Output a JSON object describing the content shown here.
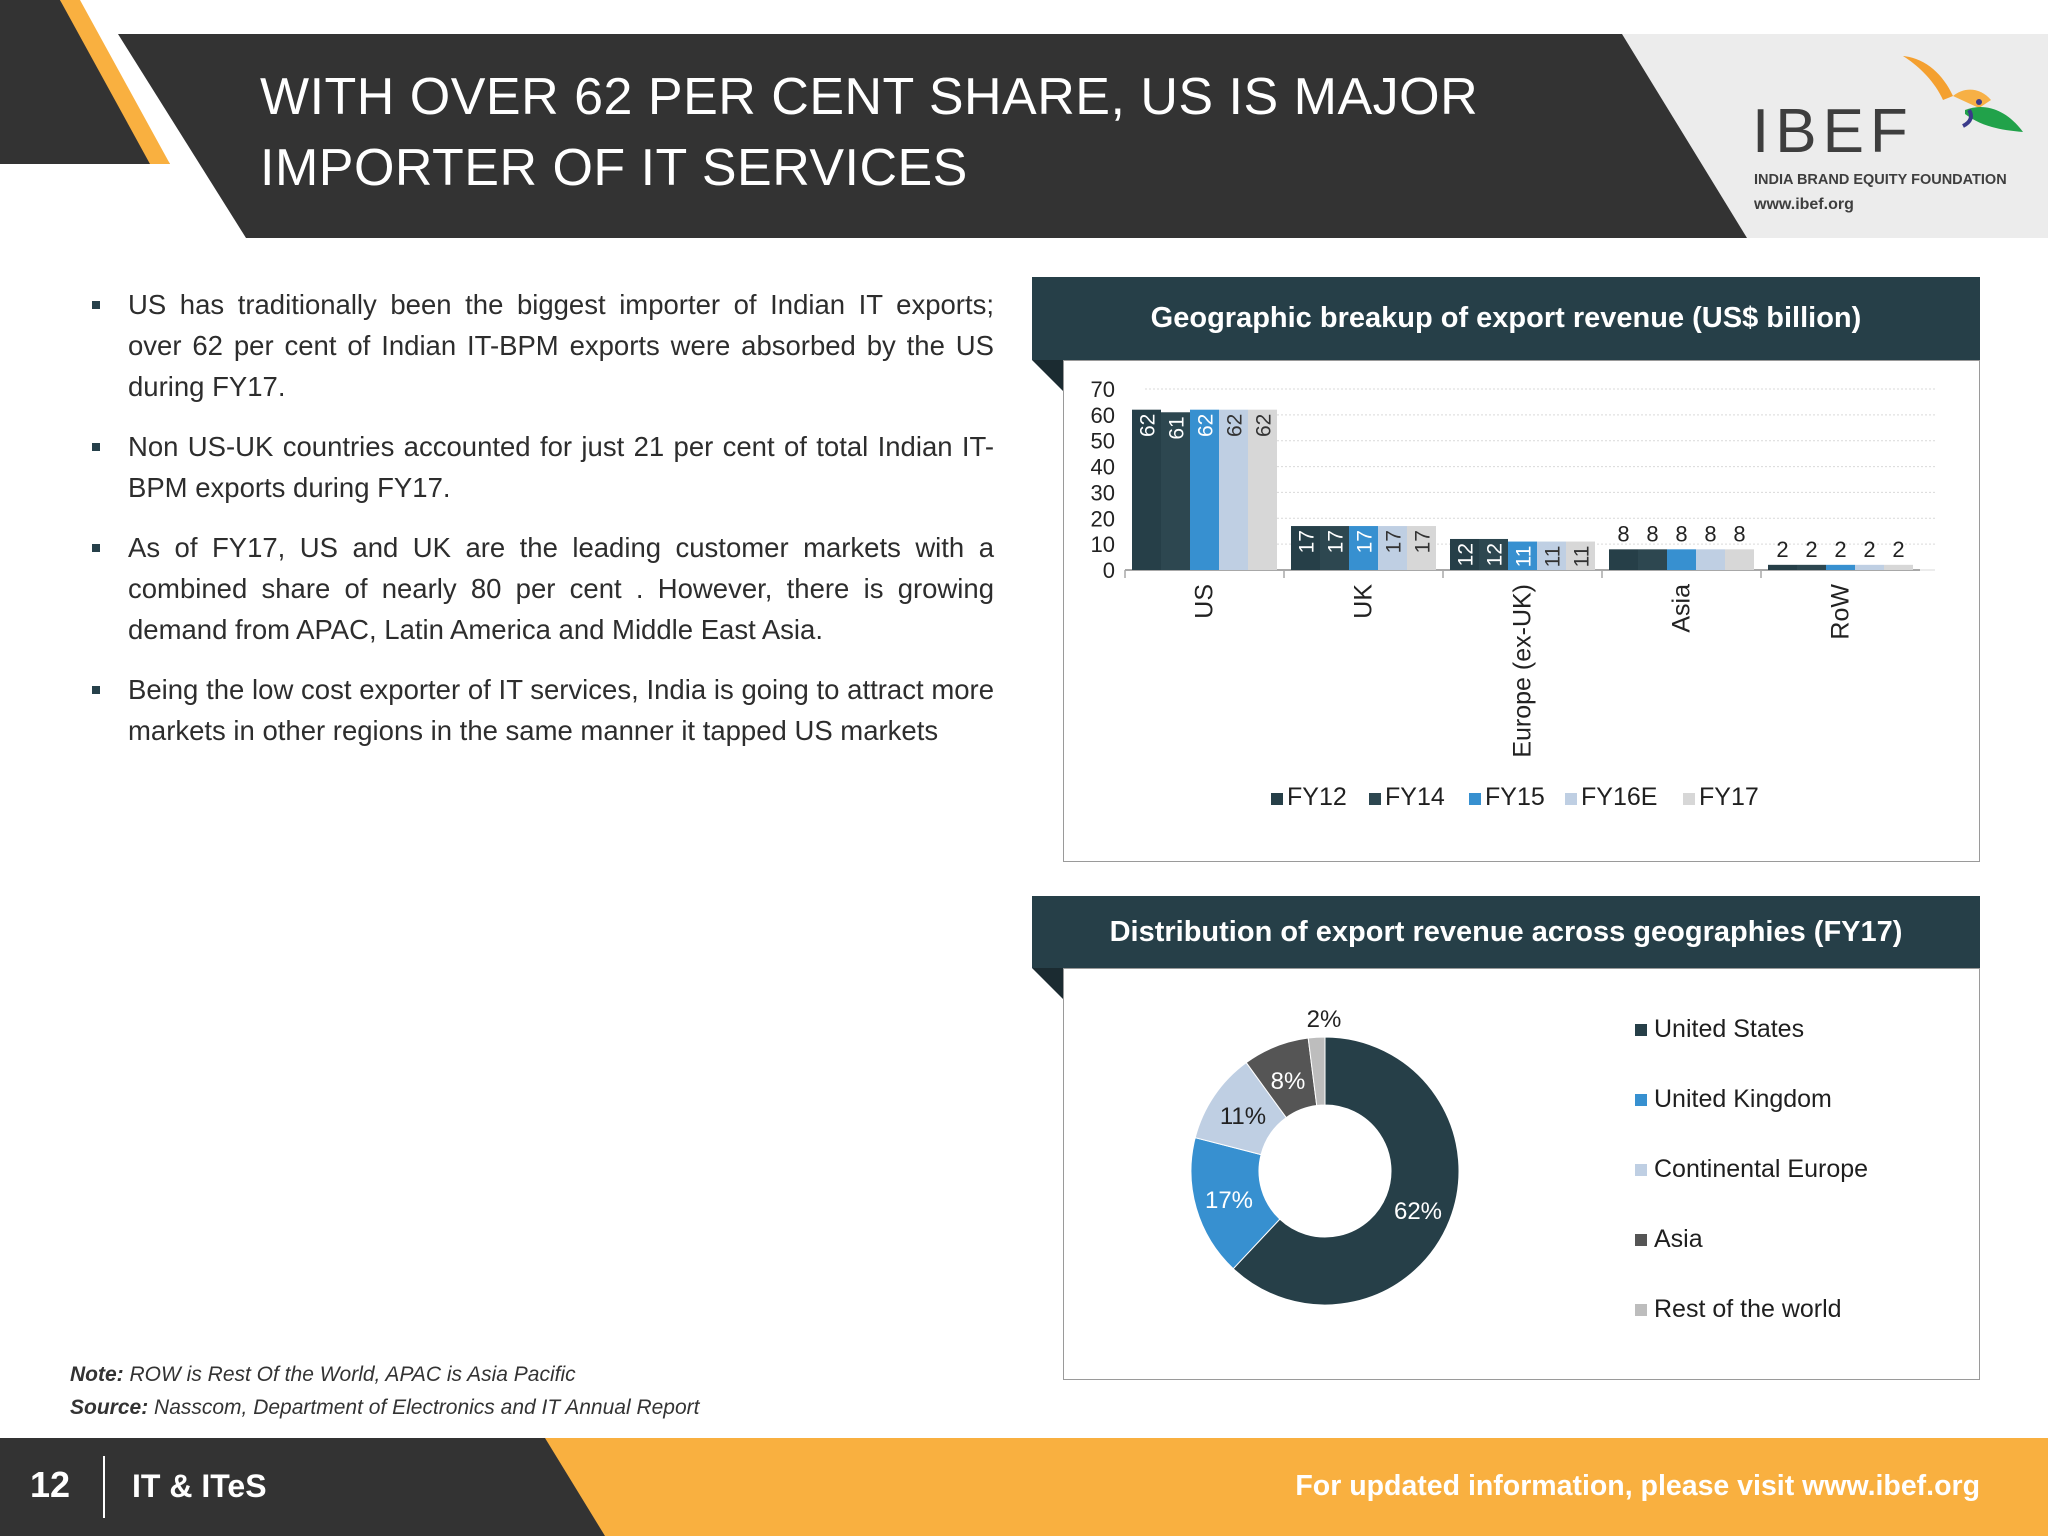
{
  "header": {
    "title_line1": "WITH OVER 62 PER CENT SHARE, US IS MAJOR",
    "title_line2": "IMPORTER OF IT SERVICES"
  },
  "logo": {
    "brand": "IBEF",
    "tagline": "INDIA BRAND EQUITY FOUNDATION",
    "url": "www.ibef.org",
    "icon": "bird-icon"
  },
  "bullets": [
    "US has traditionally been the biggest importer of Indian IT exports; over 62 per cent of Indian IT-BPM exports were absorbed by the US during FY17.",
    "Non US-UK countries accounted for just 21 per cent of total Indian IT-BPM exports during FY17.",
    "As of FY17, US and UK are the leading customer markets with a combined share of nearly 80 per cent . However, there is growing demand from APAC, Latin America and Middle East Asia.",
    "Being the low cost exporter of IT services, India is going to attract more markets in other regions in the same manner it tapped US markets"
  ],
  "chart_data": [
    {
      "type": "bar",
      "title": "Geographic breakup of export revenue (US$ billion)",
      "categories": [
        "US",
        "UK",
        "Europe (ex-UK)",
        "Asia",
        "RoW"
      ],
      "ylim": [
        0,
        70
      ],
      "yticks": [
        0,
        10,
        20,
        30,
        40,
        50,
        60,
        70
      ],
      "grid": true,
      "legend_position": "bottom",
      "series": [
        {
          "name": "FY12",
          "color": "#263f48",
          "values": [
            62,
            17,
            12,
            8,
            2
          ]
        },
        {
          "name": "FY14",
          "color": "#2d4750",
          "values": [
            61,
            17,
            12,
            8,
            2
          ]
        },
        {
          "name": "FY15",
          "color": "#3790d0",
          "values": [
            62,
            17,
            11,
            8,
            2
          ]
        },
        {
          "name": "FY16E",
          "color": "#bfcfe3",
          "values": [
            62,
            17,
            11,
            8,
            2
          ]
        },
        {
          "name": "FY17",
          "color": "#d7d7d7",
          "values": [
            62,
            17,
            11,
            8,
            2
          ]
        }
      ]
    },
    {
      "type": "pie",
      "donut": true,
      "title": "Distribution of export revenue across geographies  (FY17)",
      "legend_position": "right",
      "slices": [
        {
          "label": "United States",
          "value": 62,
          "display": "62%",
          "color": "#263f48"
        },
        {
          "label": "United Kingdom",
          "value": 17,
          "display": "17%",
          "color": "#3790d0"
        },
        {
          "label": "Continental Europe",
          "value": 11,
          "display": "11%",
          "color": "#bfcfe3"
        },
        {
          "label": "Asia",
          "value": 8,
          "display": "8%",
          "color": "#555555"
        },
        {
          "label": "Rest of the world",
          "value": 2,
          "display": "2%",
          "color": "#bdbdbd"
        }
      ]
    }
  ],
  "notes": {
    "note_label": "Note:",
    "note_text": " ROW is Rest Of the World, APAC is Asia Pacific",
    "source_label": "Source:",
    "source_text": " Nasscom, Department of Electronics and IT Annual Report"
  },
  "footer": {
    "page_number": "12",
    "section": "IT & ITeS",
    "link_text": "For updated information, please visit www.ibef.org"
  },
  "colors": {
    "dark": "#333333",
    "accent": "#f9b040",
    "panel": "#263f48"
  }
}
